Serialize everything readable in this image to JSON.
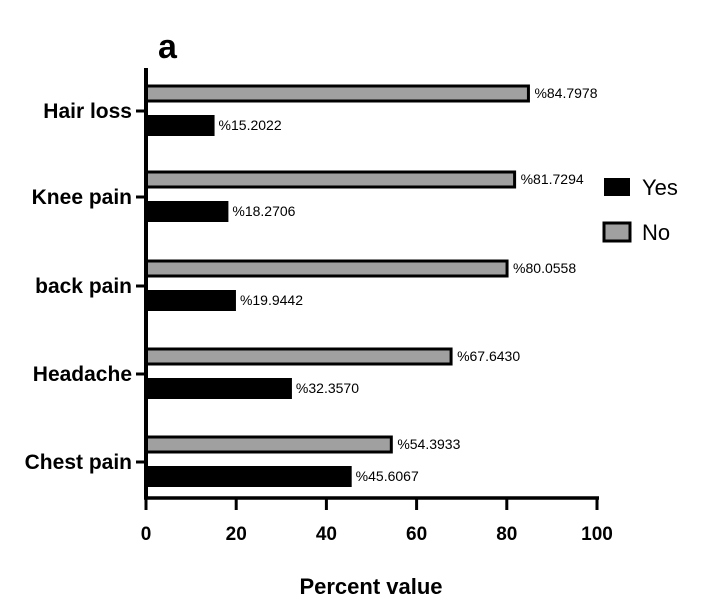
{
  "panel_label": "a",
  "chart_data": {
    "type": "bar",
    "orientation": "horizontal",
    "categories": [
      "Hair loss",
      "Knee pain",
      "back pain",
      "Headache",
      "Chest pain"
    ],
    "series": [
      {
        "name": "No",
        "color": "#a0a0a0",
        "values": [
          84.7978,
          81.7294,
          80.0558,
          67.643,
          54.3933
        ],
        "labels": [
          "%84.7978",
          "%81.7294",
          "%80.0558",
          "%67.6430",
          "%54.3933"
        ]
      },
      {
        "name": "Yes",
        "color": "#000000",
        "values": [
          15.2022,
          18.2706,
          19.9442,
          32.357,
          45.6067
        ],
        "labels": [
          "%15.2022",
          "%18.2706",
          "%19.9442",
          "%32.3570",
          "%45.6067"
        ]
      }
    ],
    "xlabel": "Percent value",
    "ylabel": "",
    "xlim": [
      0,
      100
    ],
    "xticks": [
      "0",
      "20",
      "40",
      "60",
      "80",
      "100"
    ],
    "grid": false,
    "legend": {
      "placement": "right",
      "order": [
        "Yes",
        "No"
      ]
    }
  }
}
